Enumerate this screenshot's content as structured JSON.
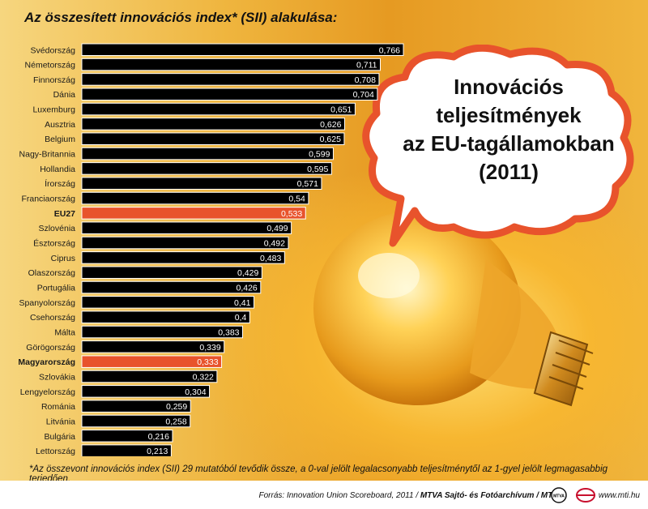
{
  "title": "Az összesített innovációs index* (SII) alakulása:",
  "bubble_lines": [
    "Innovációs",
    "teljesítmények",
    "az EU-tagállamokban",
    "(2011)"
  ],
  "footnote": "*Az összevont innovációs index (SII) 29 mutatóból tevődik össze, a 0-val jelölt legalacsonyabb teljesítménytől az 1-gyel jelölt legmagasabbig terjedően.",
  "footer": {
    "source_prefix": "Forrás: Innovation Union Scoreboard, 2011 / ",
    "source_bold": "MTVA Sajtó- és Fotóarchívum / MTI",
    "logo1": "MTVA",
    "website": "www.mti.hu"
  },
  "colors": {
    "bar": "#000000",
    "highlight": "#e8532c",
    "bubble_border": "#e8532c"
  },
  "chart_data": {
    "type": "bar",
    "orientation": "horizontal",
    "title": "Az összesített innovációs index* (SII) alakulása:",
    "categories": [
      "Svédország",
      "Németország",
      "Finnország",
      "Dánia",
      "Luxemburg",
      "Ausztria",
      "Belgium",
      "Nagy-Britannia",
      "Hollandia",
      "Írország",
      "Franciaország",
      "EU27",
      "Szlovénia",
      "Észtország",
      "Ciprus",
      "Olaszország",
      "Portugália",
      "Spanyolország",
      "Csehország",
      "Málta",
      "Görögország",
      "Magyarország",
      "Szlovákia",
      "Lengyelország",
      "Románia",
      "Litvánia",
      "Bulgária",
      "Lettország"
    ],
    "values": [
      0.766,
      0.711,
      0.708,
      0.704,
      0.651,
      0.626,
      0.625,
      0.599,
      0.595,
      0.571,
      0.54,
      0.533,
      0.499,
      0.492,
      0.483,
      0.429,
      0.426,
      0.41,
      0.4,
      0.383,
      0.339,
      0.333,
      0.322,
      0.304,
      0.259,
      0.258,
      0.216,
      0.213
    ],
    "value_labels": [
      "0,766",
      "0,711",
      "0,708",
      "0,704",
      "0,651",
      "0,626",
      "0,625",
      "0,599",
      "0,595",
      "0,571",
      "0,54",
      "0,533",
      "0,499",
      "0,492",
      "0,483",
      "0,429",
      "0,426",
      "0,41",
      "0,4",
      "0,383",
      "0,339",
      "0,333",
      "0,322",
      "0,304",
      "0,259",
      "0,258",
      "0,216",
      "0,213"
    ],
    "highlighted": [
      "EU27",
      "Magyarország"
    ],
    "xlim": [
      0,
      0.766
    ],
    "grid": false
  }
}
